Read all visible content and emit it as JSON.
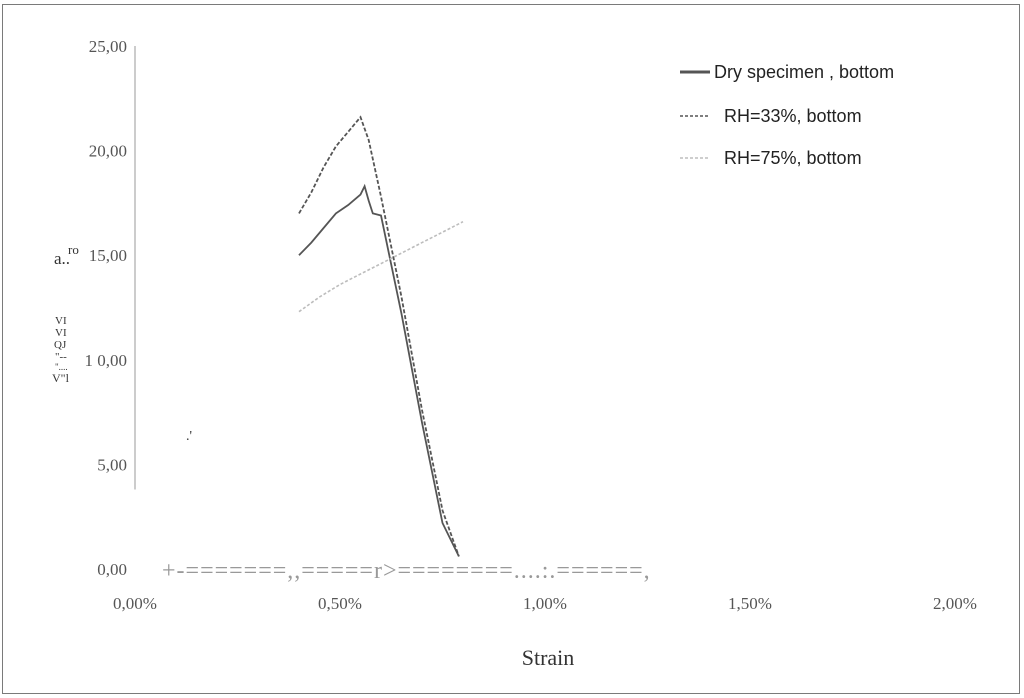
{
  "chart_data": {
    "type": "line",
    "title": "",
    "xlabel": "Strain",
    "ylabel_fragments": [
      "ro",
      "a..",
      "VI",
      "VI",
      "QJ",
      "\"--",
      "\"....",
      "V\"l"
    ],
    "xlim": [
      0,
      0.02
    ],
    "ylim": [
      0,
      25
    ],
    "x_ticks": [
      "0,00%",
      "0,50%",
      "1,00%",
      "1,50%",
      "2,00%"
    ],
    "y_ticks": [
      "0,00",
      "5,00",
      "1 0,00",
      "15,00",
      "20,00",
      "25,00"
    ],
    "baseline_artifact": "+-=======,,=====r>========....:.======,",
    "stray_mark": ".'",
    "legend_position": "top-right",
    "series": [
      {
        "name": "Dry specimen , bottom",
        "color": "#555555",
        "style": "solid",
        "x": [
          0.004,
          0.0043,
          0.0046,
          0.0049,
          0.0052,
          0.0055,
          0.0056,
          0.0057,
          0.0058,
          0.006,
          0.0065,
          0.007,
          0.0075,
          0.0079
        ],
        "y": [
          15.0,
          15.6,
          16.3,
          17.0,
          17.4,
          17.9,
          18.3,
          17.6,
          17.0,
          16.9,
          12.2,
          7.0,
          2.2,
          0.6
        ]
      },
      {
        "name": "RH=33%, bottom",
        "color": "#555555",
        "style": "dashed",
        "x": [
          0.004,
          0.0043,
          0.0046,
          0.0049,
          0.0052,
          0.0055,
          0.0057,
          0.006,
          0.0065,
          0.007,
          0.0075,
          0.0079
        ],
        "y": [
          17.0,
          18.0,
          19.2,
          20.2,
          20.9,
          21.6,
          20.5,
          17.8,
          13.0,
          7.6,
          2.8,
          0.6
        ]
      },
      {
        "name": "RH=75%, bottom",
        "color": "#bdbdbd",
        "style": "dashed",
        "x": [
          0.004,
          0.0045,
          0.005,
          0.0055,
          0.006,
          0.0065,
          0.007,
          0.0075,
          0.008
        ],
        "y": [
          12.3,
          13.0,
          13.6,
          14.1,
          14.6,
          15.1,
          15.6,
          16.1,
          16.6
        ]
      }
    ]
  }
}
